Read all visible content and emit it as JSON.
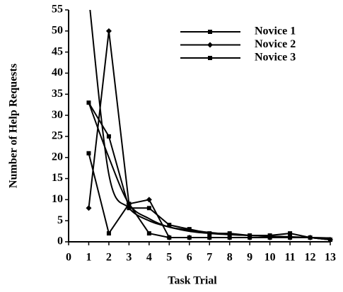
{
  "chart_data": {
    "type": "line",
    "xlabel": "Task Trial",
    "ylabel": "Number of Help Requests",
    "x": [
      1,
      2,
      3,
      4,
      5,
      6,
      7,
      8,
      9,
      10,
      11,
      12,
      13
    ],
    "series": [
      {
        "name": "Novice 1",
        "color": "#000000",
        "marker": "square",
        "values": [
          21,
          2,
          9,
          2,
          1,
          1,
          1,
          1,
          1,
          1,
          1,
          1,
          0.5
        ]
      },
      {
        "name": "Novice 2",
        "color": "#000000",
        "marker": "diamond",
        "values": [
          8,
          50,
          9,
          10,
          1,
          1,
          1,
          1,
          1,
          1,
          1,
          1,
          0.5
        ]
      },
      {
        "name": "Novice 3",
        "color": "#000000",
        "marker": "square",
        "values": [
          33,
          25,
          8,
          8,
          4,
          3,
          2,
          2,
          1.5,
          1.5,
          2,
          1,
          0.5
        ]
      },
      {
        "color": "#000000",
        "marker": "none",
        "smooth": true,
        "values": [
          58,
          16,
          8,
          5,
          3.5,
          2.5,
          2,
          1.7,
          1.5,
          1.3,
          1.1,
          1,
          0.9
        ]
      },
      {
        "color": "#000000",
        "marker": "none",
        "smooth": true,
        "values": [
          33,
          20,
          9,
          5.5,
          3.5,
          2.8,
          2.2,
          1.8,
          1.5,
          1.3,
          1.2,
          1,
          0.9
        ]
      }
    ],
    "xlim": [
      0,
      13
    ],
    "xticks": [
      0,
      1,
      2,
      3,
      4,
      5,
      6,
      7,
      8,
      9,
      10,
      11,
      12,
      13
    ],
    "ylim": [
      0,
      55
    ],
    "yticks": [
      0,
      5,
      10,
      15,
      20,
      25,
      30,
      35,
      40,
      45,
      50,
      55
    ],
    "grid": false,
    "legend": "upper right"
  }
}
